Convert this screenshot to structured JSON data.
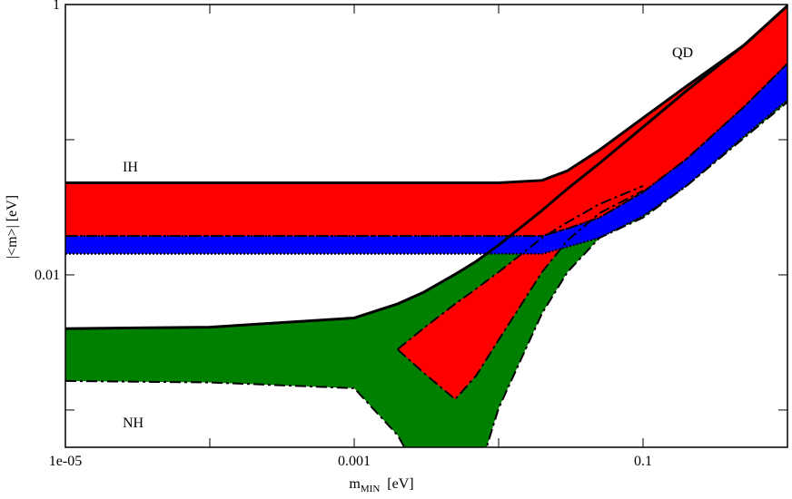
{
  "chart_data": {
    "type": "band",
    "x_label": [
      "m",
      "MIN",
      "[eV]"
    ],
    "y_label": "|<m>| [eV]",
    "annotations": [
      "IH",
      "QD",
      "NH"
    ],
    "log_x": true,
    "log_y": true,
    "xlim": [
      1e-05,
      1
    ],
    "ylim": [
      0.00053,
      1
    ],
    "xticks": [
      {
        "value": 1e-05,
        "label": "1e-05"
      },
      0.001,
      0.1
    ],
    "xminorticks": [
      0.0001,
      0.01,
      1
    ],
    "yticks": [
      0.01,
      1
    ],
    "yminorticks": [
      0.001,
      0.1
    ],
    "bands": [
      {
        "color": "#008000",
        "upper_line": "solid",
        "lower_line": "dashdot",
        "x": [
          1e-05,
          0.0001,
          0.001,
          0.002,
          0.003,
          0.005,
          0.007,
          0.01,
          0.02,
          0.03,
          0.05,
          0.1,
          0.2,
          0.5,
          1
        ],
        "upper": [
          0.004,
          0.0041,
          0.0048,
          0.0061,
          0.0074,
          0.0101,
          0.0126,
          0.0166,
          0.03,
          0.0434,
          0.067,
          0.124,
          0.23,
          0.5,
          0.98
        ],
        "lower": [
          0.00164,
          0.0016,
          0.00145,
          0.00065,
          0.0003,
          0.0003,
          0.0003,
          0.00103,
          0.0052,
          0.0105,
          0.0188,
          0.0265,
          0.0455,
          0.103,
          0.19
        ]
      },
      {
        "color": "#ff0000",
        "upper_line": "dashdot",
        "lower_line": "dashdot",
        "x": [
          0.002,
          0.003,
          0.005,
          0.007,
          0.01,
          0.02,
          0.03,
          0.05,
          0.1
        ],
        "upper": [
          0.00282,
          0.004,
          0.0061,
          0.0079,
          0.0105,
          0.0188,
          0.0245,
          0.0334,
          0.0455
        ],
        "lower": [
          0.0028,
          0.0019,
          0.0012,
          0.0018,
          0.0033,
          0.0105,
          0.018,
          0.0286,
          0.042
        ]
      },
      {
        "color": "#ff0000",
        "upper_line": "solid",
        "lower_line": "dashdot",
        "x": [
          1e-05,
          0.0001,
          0.001,
          0.01,
          0.02,
          0.03,
          0.05,
          0.1,
          0.2,
          0.5,
          1
        ],
        "upper": [
          0.048,
          0.048,
          0.048,
          0.048,
          0.05,
          0.059,
          0.084,
          0.145,
          0.249,
          0.5,
          0.98
        ],
        "lower": [
          0.0194,
          0.0194,
          0.0194,
          0.0194,
          0.0194,
          0.022,
          0.0265,
          0.041,
          0.072,
          0.175,
          0.366
        ]
      },
      {
        "color": "#0000ff",
        "upper_line": "dotted",
        "lower_line": "dotted",
        "x": [
          1e-05,
          0.0001,
          0.001,
          0.01,
          0.02,
          0.03,
          0.05,
          0.1,
          0.2,
          0.5,
          1
        ],
        "upper": [
          0.0194,
          0.0194,
          0.0194,
          0.0194,
          0.0194,
          0.022,
          0.0265,
          0.041,
          0.072,
          0.175,
          0.366
        ],
        "lower": [
          0.0143,
          0.0143,
          0.0143,
          0.0143,
          0.0143,
          0.0161,
          0.0188,
          0.0273,
          0.0455,
          0.106,
          0.197
        ]
      }
    ]
  }
}
